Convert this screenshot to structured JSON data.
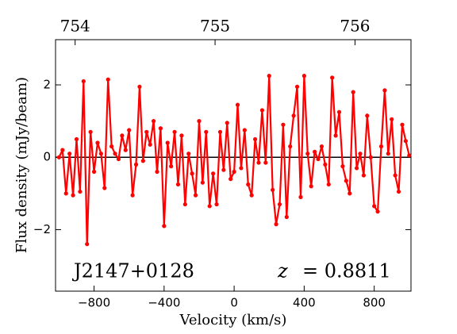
{
  "chart_data": {
    "type": "line",
    "xlabel": "Velocity (km/s)",
    "ylabel": "Flux density (mJy/beam)",
    "annotations": [
      "J2147+0128",
      "z",
      "= 0.8811"
    ],
    "xlim": [
      -1020,
      1010
    ],
    "xticks": [
      {
        "value": -800,
        "label": "−800"
      },
      {
        "value": -400,
        "label": "−400"
      },
      0,
      400,
      800
    ],
    "ylim": [
      -3.7,
      3.25
    ],
    "yticks": [
      {
        "value": -2,
        "label": "−2"
      },
      0,
      2
    ],
    "x2lim": [
      753.86,
      756.4
    ],
    "x2ticks": [
      754,
      755,
      756
    ],
    "zero_line": true,
    "x": [
      -1000,
      -980,
      -960,
      -940,
      -920,
      -900,
      -880,
      -860,
      -840,
      -820,
      -800,
      -780,
      -760,
      -740,
      -720,
      -700,
      -680,
      -660,
      -640,
      -620,
      -600,
      -580,
      -560,
      -540,
      -520,
      -500,
      -480,
      -460,
      -440,
      -420,
      -400,
      -380,
      -360,
      -340,
      -320,
      -300,
      -280,
      -260,
      -240,
      -220,
      -200,
      -180,
      -160,
      -140,
      -120,
      -100,
      -80,
      -60,
      -40,
      -20,
      0,
      20,
      40,
      60,
      80,
      100,
      120,
      140,
      160,
      180,
      200,
      220,
      240,
      260,
      280,
      300,
      320,
      340,
      360,
      380,
      400,
      420,
      440,
      460,
      480,
      500,
      520,
      540,
      560,
      580,
      600,
      620,
      640,
      660,
      680,
      700,
      720,
      740,
      760,
      780,
      800,
      820,
      840,
      860,
      880,
      900,
      920,
      940,
      960,
      980,
      1000
    ],
    "series": [
      {
        "color": "#ff0000",
        "values": [
          0.0,
          0.2,
          -1.0,
          0.1,
          -1.05,
          0.5,
          -0.95,
          2.1,
          -2.4,
          0.7,
          -0.4,
          0.4,
          0.1,
          -0.85,
          2.15,
          0.3,
          0.1,
          -0.05,
          0.6,
          0.2,
          0.75,
          -1.05,
          -0.2,
          1.95,
          -0.1,
          0.7,
          0.35,
          1.0,
          -0.4,
          0.8,
          -1.9,
          0.4,
          -0.25,
          0.7,
          -0.75,
          0.6,
          -1.3,
          0.1,
          -0.45,
          -1.05,
          1.0,
          -0.7,
          0.7,
          -1.35,
          -0.45,
          -1.3,
          0.7,
          -0.35,
          0.95,
          -0.6,
          -0.4,
          1.45,
          -0.3,
          0.75,
          -0.75,
          -1.05,
          0.5,
          -0.15,
          1.3,
          -0.15,
          2.25,
          -0.9,
          -1.85,
          -1.3,
          0.9,
          -1.65,
          0.3,
          1.15,
          1.95,
          -1.1,
          2.25,
          0.1,
          -0.8,
          0.15,
          -0.05,
          0.3,
          -0.2,
          -0.75,
          2.2,
          0.6,
          1.25,
          -0.25,
          -0.65,
          -1.0,
          1.8,
          -0.3,
          0.1,
          -0.5,
          1.15,
          0.0,
          -1.35,
          -1.5,
          0.3,
          1.85,
          0.1,
          1.05,
          -0.5,
          -0.95,
          0.9,
          0.45,
          0.05
        ]
      }
    ]
  }
}
